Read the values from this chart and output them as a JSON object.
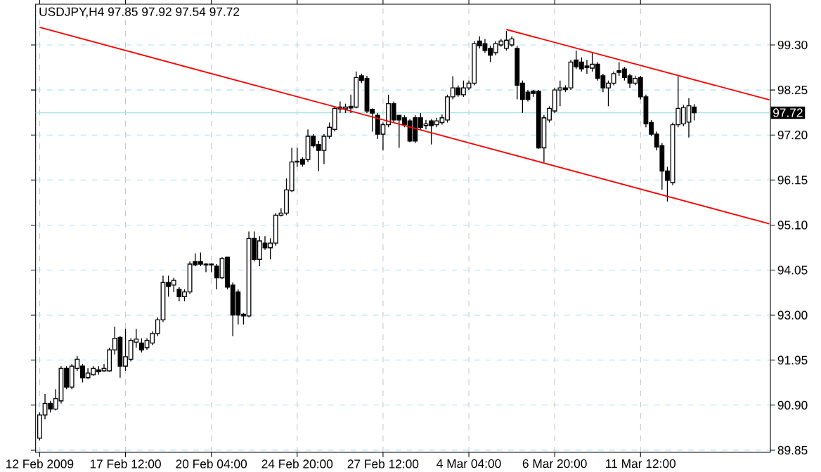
{
  "chart_data": {
    "type": "candlestick",
    "title": "USDJPY,H4 97.85 97.92 97.54 97.72",
    "color": "#000000",
    "grid": true,
    "categories": [
      "12 Feb 2009",
      null,
      null,
      null,
      null,
      null,
      null,
      null,
      null,
      null,
      null,
      null,
      null,
      null,
      null,
      null,
      "17 Feb 12:00",
      null,
      null,
      null,
      null,
      null,
      null,
      null,
      null,
      null,
      null,
      null,
      null,
      null,
      null,
      null,
      "20 Feb 04:00",
      null,
      null,
      null,
      null,
      null,
      null,
      null,
      null,
      null,
      null,
      null,
      null,
      null,
      null,
      null,
      "24 Feb 20:00",
      null,
      null,
      null,
      null,
      null,
      null,
      null,
      null,
      null,
      null,
      null,
      null,
      null,
      null,
      null,
      "27 Feb 12:00",
      null,
      null,
      null,
      null,
      null,
      null,
      null,
      null,
      null,
      null,
      null,
      null,
      null,
      null,
      null,
      "4 Mar 04:00",
      null,
      null,
      null,
      null,
      null,
      null,
      null,
      null,
      null,
      null,
      null,
      null,
      null,
      null,
      null,
      "6 Mar 20:00",
      null,
      null,
      null,
      null,
      null,
      null,
      null,
      null,
      null,
      null,
      null,
      null,
      null,
      null,
      null,
      "11 Mar 12:00",
      null,
      null,
      null,
      null,
      null,
      null,
      null,
      null,
      null,
      null,
      null,
      null,
      null,
      null,
      null,
      null,
      null,
      null,
      null,
      null,
      null,
      null,
      null,
      null
    ],
    "ohlc": [
      [
        90.13,
        90.73,
        90.08,
        90.67
      ],
      [
        90.67,
        91.16,
        90.57,
        90.94
      ],
      [
        90.94,
        91.0,
        90.73,
        90.81
      ],
      [
        90.81,
        91.27,
        90.78,
        91.05
      ],
      [
        91.0,
        91.81,
        90.94,
        91.76
      ],
      [
        91.76,
        91.81,
        91.27,
        91.32
      ],
      [
        91.32,
        91.86,
        91.27,
        91.81
      ],
      [
        91.76,
        92.05,
        91.7,
        91.97
      ],
      [
        91.81,
        91.86,
        91.43,
        91.54
      ],
      [
        91.54,
        91.76,
        91.51,
        91.65
      ],
      [
        91.61,
        91.81,
        91.59,
        91.76
      ],
      [
        91.72,
        91.81,
        91.61,
        91.68
      ],
      [
        91.7,
        91.86,
        91.68,
        91.76
      ],
      [
        91.7,
        92.24,
        91.68,
        92.19
      ],
      [
        92.19,
        92.73,
        92.08,
        92.46
      ],
      [
        92.48,
        92.51,
        91.54,
        91.81
      ],
      [
        91.81,
        92.68,
        91.7,
        92.03
      ],
      [
        91.97,
        92.46,
        91.92,
        92.41
      ],
      [
        92.37,
        92.68,
        92.24,
        92.44
      ],
      [
        92.35,
        92.46,
        92.13,
        92.19
      ],
      [
        92.24,
        92.46,
        92.19,
        92.41
      ],
      [
        92.35,
        92.62,
        92.3,
        92.57
      ],
      [
        92.57,
        92.95,
        92.51,
        92.89
      ],
      [
        92.89,
        93.92,
        92.84,
        93.76
      ],
      [
        93.76,
        93.92,
        93.43,
        93.67
      ],
      [
        93.7,
        93.87,
        93.54,
        93.81
      ],
      [
        93.6,
        93.65,
        93.32,
        93.43
      ],
      [
        93.43,
        93.6,
        93.32,
        93.54
      ],
      [
        93.54,
        94.25,
        93.49,
        94.19
      ],
      [
        94.25,
        94.44,
        94.14,
        94.17
      ],
      [
        94.25,
        94.46,
        94.14,
        94.19
      ],
      [
        94.19,
        94.21,
        94.0,
        94.17
      ],
      [
        94.17,
        94.21,
        94.0,
        94.19
      ],
      [
        94.14,
        94.19,
        93.6,
        93.87
      ],
      [
        93.87,
        94.35,
        93.84,
        94.32
      ],
      [
        94.35,
        94.35,
        93.6,
        93.65
      ],
      [
        93.7,
        93.76,
        92.51,
        93.0
      ],
      [
        93.54,
        93.6,
        92.78,
        93.0
      ],
      [
        93.02,
        93.05,
        92.78,
        92.98
      ],
      [
        92.98,
        94.95,
        92.95,
        94.79
      ],
      [
        94.79,
        94.95,
        94.25,
        94.3
      ],
      [
        94.3,
        94.84,
        94.14,
        94.73
      ],
      [
        94.68,
        94.84,
        94.52,
        94.57
      ],
      [
        94.57,
        94.79,
        94.3,
        94.68
      ],
      [
        94.68,
        95.38,
        94.62,
        95.33
      ],
      [
        95.33,
        95.49,
        95.3,
        95.38
      ],
      [
        95.38,
        96.19,
        95.33,
        95.92
      ],
      [
        95.9,
        96.9,
        95.87,
        96.57
      ],
      [
        96.59,
        96.9,
        96.46,
        96.57
      ],
      [
        96.63,
        96.68,
        96.46,
        96.52
      ],
      [
        96.63,
        97.33,
        96.57,
        97.17
      ],
      [
        97.17,
        97.22,
        96.9,
        96.95
      ],
      [
        96.98,
        97.06,
        96.36,
        96.84
      ],
      [
        96.84,
        97.22,
        96.52,
        97.17
      ],
      [
        97.17,
        97.49,
        97.11,
        97.38
      ],
      [
        97.33,
        97.87,
        97.28,
        97.82
      ],
      [
        97.85,
        97.98,
        97.71,
        97.81
      ],
      [
        97.81,
        97.93,
        97.71,
        97.85
      ],
      [
        97.87,
        98.14,
        97.71,
        97.83
      ],
      [
        97.85,
        98.68,
        97.82,
        98.54
      ],
      [
        98.58,
        98.63,
        98.41,
        98.47
      ],
      [
        98.52,
        98.58,
        97.71,
        97.76
      ],
      [
        97.8,
        97.82,
        97.28,
        97.71
      ],
      [
        97.66,
        97.71,
        97.11,
        97.22
      ],
      [
        97.22,
        97.49,
        96.84,
        97.44
      ],
      [
        97.44,
        98.14,
        97.38,
        97.93
      ],
      [
        97.93,
        97.98,
        97.49,
        97.55
      ],
      [
        97.66,
        97.66,
        96.9,
        97.55
      ],
      [
        97.6,
        97.66,
        97.38,
        97.44
      ],
      [
        97.53,
        97.57,
        97.03,
        97.06
      ],
      [
        97.6,
        97.66,
        97.01,
        97.06
      ],
      [
        97.6,
        97.71,
        97.33,
        97.38
      ],
      [
        97.42,
        97.55,
        97.33,
        97.46
      ],
      [
        97.53,
        97.57,
        96.98,
        97.42
      ],
      [
        97.44,
        97.6,
        97.38,
        97.53
      ],
      [
        97.49,
        97.68,
        97.44,
        97.6
      ],
      [
        97.55,
        98.14,
        97.49,
        98.09
      ],
      [
        98.09,
        98.57,
        98.03,
        98.3
      ],
      [
        98.3,
        98.36,
        98.09,
        98.14
      ],
      [
        98.14,
        98.47,
        98.09,
        98.3
      ],
      [
        98.3,
        98.47,
        98.25,
        98.41
      ],
      [
        98.41,
        99.39,
        98.36,
        99.33
      ],
      [
        99.39,
        99.5,
        99.22,
        99.28
      ],
      [
        99.33,
        99.44,
        99.12,
        99.17
      ],
      [
        99.22,
        99.28,
        98.9,
        99.06
      ],
      [
        99.12,
        99.39,
        99.06,
        99.33
      ],
      [
        99.3,
        99.44,
        99.26,
        99.39
      ],
      [
        99.22,
        99.63,
        99.17,
        99.41
      ],
      [
        99.3,
        99.5,
        99.26,
        99.44
      ],
      [
        99.22,
        99.28,
        98.03,
        98.36
      ],
      [
        98.41,
        98.47,
        97.71,
        98.03
      ],
      [
        98.2,
        98.25,
        97.98,
        98.03
      ],
      [
        98.22,
        98.25,
        98.09,
        98.17
      ],
      [
        98.22,
        98.25,
        96.88,
        96.9
      ],
      [
        96.9,
        97.66,
        96.57,
        97.6
      ],
      [
        97.55,
        97.87,
        97.49,
        97.82
      ],
      [
        97.76,
        98.3,
        97.71,
        98.25
      ],
      [
        98.25,
        98.47,
        97.87,
        98.3
      ],
      [
        98.3,
        98.36,
        98.2,
        98.26
      ],
      [
        98.3,
        98.95,
        98.25,
        98.9
      ],
      [
        98.95,
        99.17,
        98.74,
        98.79
      ],
      [
        98.9,
        99.01,
        98.68,
        98.74
      ],
      [
        98.81,
        98.95,
        98.63,
        98.77
      ],
      [
        98.76,
        99.12,
        98.68,
        98.85
      ],
      [
        98.85,
        98.9,
        98.47,
        98.52
      ],
      [
        98.58,
        98.63,
        98.2,
        98.3
      ],
      [
        98.3,
        98.47,
        97.87,
        98.41
      ],
      [
        98.41,
        98.68,
        98.36,
        98.63
      ],
      [
        98.7,
        98.9,
        98.58,
        98.66
      ],
      [
        98.74,
        98.79,
        98.47,
        98.54
      ],
      [
        98.58,
        98.63,
        98.3,
        98.41
      ],
      [
        98.41,
        98.58,
        98.36,
        98.52
      ],
      [
        98.54,
        98.58,
        98.03,
        98.09
      ],
      [
        98.09,
        98.14,
        97.38,
        97.46
      ],
      [
        97.49,
        97.55,
        97.17,
        97.22
      ],
      [
        97.22,
        97.28,
        96.84,
        96.92
      ],
      [
        96.95,
        97.01,
        95.92,
        96.36
      ],
      [
        96.36,
        96.46,
        95.65,
        96.14
      ],
      [
        96.09,
        97.49,
        96.03,
        97.44
      ],
      [
        97.44,
        98.57,
        97.38,
        97.82
      ],
      [
        97.46,
        97.9,
        97.41,
        97.84
      ],
      [
        97.5,
        98.06,
        97.14,
        97.88
      ],
      [
        97.85,
        97.92,
        97.54,
        97.72
      ],
      null,
      null,
      null,
      null,
      null,
      null,
      null,
      null,
      null,
      null,
      null,
      null,
      null,
      null
    ],
    "series": [
      {
        "type": "line",
        "color": "#ff0000",
        "values": [
          99.71,
          null,
          null,
          null,
          null,
          null,
          null,
          null,
          null,
          null,
          null,
          null,
          null,
          null,
          null,
          null,
          null,
          null,
          null,
          null,
          null,
          null,
          null,
          null,
          null,
          null,
          null,
          null,
          null,
          null,
          null,
          null,
          null,
          null,
          null,
          null,
          null,
          null,
          null,
          null,
          null,
          null,
          null,
          null,
          null,
          null,
          null,
          null,
          null,
          null,
          null,
          null,
          null,
          null,
          null,
          null,
          null,
          null,
          null,
          null,
          null,
          null,
          null,
          null,
          null,
          null,
          null,
          null,
          null,
          null,
          null,
          null,
          null,
          null,
          null,
          null,
          null,
          null,
          null,
          null,
          null,
          null,
          null,
          null,
          null,
          null,
          null,
          null,
          null,
          null,
          null,
          null,
          null,
          null,
          null,
          null,
          null,
          null,
          null,
          null,
          null,
          null,
          null,
          null,
          null,
          null,
          null,
          null,
          null,
          null,
          null,
          null,
          null,
          null,
          null,
          null,
          null,
          null,
          null,
          null,
          null,
          null,
          null,
          null,
          null,
          null,
          null,
          null,
          null,
          null,
          null,
          null,
          null,
          null,
          null,
          null,
          95.13
        ]
      },
      {
        "type": "line",
        "color": "#ff0000",
        "values": [
          null,
          null,
          null,
          null,
          null,
          null,
          null,
          null,
          null,
          null,
          null,
          null,
          null,
          null,
          null,
          null,
          null,
          null,
          null,
          null,
          null,
          null,
          null,
          null,
          null,
          null,
          null,
          null,
          null,
          null,
          null,
          null,
          null,
          null,
          null,
          null,
          null,
          null,
          null,
          null,
          null,
          null,
          null,
          null,
          null,
          null,
          null,
          null,
          null,
          null,
          null,
          null,
          null,
          null,
          null,
          null,
          null,
          null,
          null,
          null,
          null,
          null,
          null,
          null,
          null,
          null,
          null,
          null,
          null,
          null,
          null,
          null,
          null,
          null,
          null,
          null,
          null,
          null,
          null,
          null,
          null,
          null,
          null,
          null,
          null,
          null,
          null,
          99.66,
          null,
          null,
          null,
          null,
          null,
          null,
          null,
          null,
          null,
          null,
          null,
          null,
          null,
          null,
          null,
          null,
          null,
          null,
          null,
          null,
          null,
          null,
          null,
          null,
          null,
          null,
          null,
          null,
          null,
          null,
          null,
          null,
          null,
          null,
          null,
          null,
          null,
          null,
          null,
          null,
          null,
          null,
          null,
          null,
          null,
          null,
          null,
          null,
          98.02
        ]
      }
    ],
    "ylim": [
      89.8,
      100.25
    ],
    "yticks": [
      {
        "value": 89.85,
        "label": "89.85"
      },
      {
        "value": 90.9,
        "label": "90.90"
      },
      {
        "value": 91.95,
        "label": "91.95"
      },
      {
        "value": 93.0,
        "label": "93.00"
      },
      {
        "value": 94.05,
        "label": "94.05"
      },
      {
        "value": 95.1,
        "label": "95.10"
      },
      {
        "value": 96.15,
        "label": "96.15"
      },
      {
        "value": 97.2,
        "label": "97.20"
      },
      {
        "value": 98.25,
        "label": "98.25"
      },
      {
        "value": 99.3,
        "label": "99.30"
      }
    ],
    "ref_lines": [
      {
        "axis": "y",
        "value": 97.72,
        "label": "97.72",
        "color": "#a8e4e4"
      }
    ]
  }
}
